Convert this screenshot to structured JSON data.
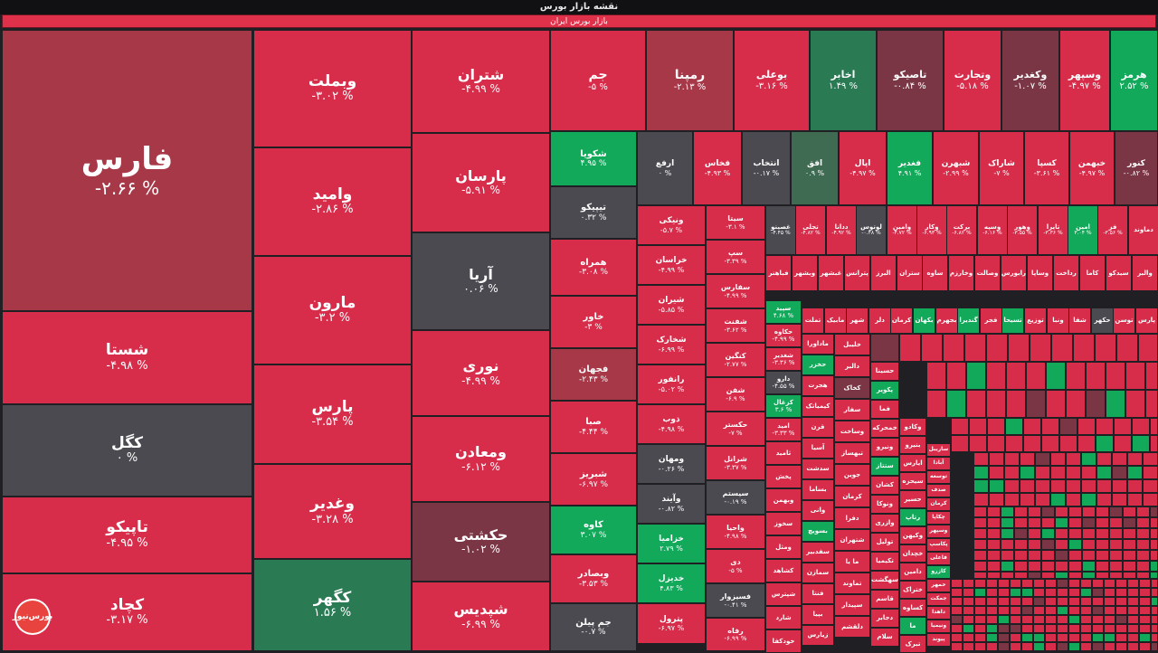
{
  "header": {
    "title": "نقشه بازار بورس",
    "market": "بازار بورس ایران"
  },
  "logo_text": "بورس‌نیوز",
  "colors": {
    "negative": "#d72c4a",
    "neutral": "#4a4a50",
    "positive": "#13a95b"
  },
  "big": [
    {
      "name": "فارس",
      "pct": "-۲.۶۶ %",
      "c": "dr"
    },
    {
      "name": "شستا",
      "pct": "-۴.۹۸ %",
      "c": "r"
    },
    {
      "name": "کگل",
      "pct": "۰ %",
      "c": "gy"
    },
    {
      "name": "تاپیکو",
      "pct": "-۴.۹۵ %",
      "c": "r"
    },
    {
      "name": "کچاد",
      "pct": "-۳.۱۷ %",
      "c": "r"
    },
    {
      "name": "وبملت",
      "pct": "-۳.۰۲ %",
      "c": "r"
    },
    {
      "name": "وامید",
      "pct": "-۲.۸۶ %",
      "c": "r"
    },
    {
      "name": "مارون",
      "pct": "-۳.۲ %",
      "c": "r"
    },
    {
      "name": "پارس",
      "pct": "-۳.۵۴ %",
      "c": "r"
    },
    {
      "name": "وغدیر",
      "pct": "-۳.۲۸ %",
      "c": "r"
    },
    {
      "name": "کگهر",
      "pct": "۱.۵۶ %",
      "c": "dg"
    },
    {
      "name": "شتران",
      "pct": "-۴.۹۹ %",
      "c": "r"
    },
    {
      "name": "پارسان",
      "pct": "-۵.۹۱ %",
      "c": "r"
    },
    {
      "name": "آریا",
      "pct": "۰.۰۶ %",
      "c": "gy"
    },
    {
      "name": "نوری",
      "pct": "-۴.۹۹ %",
      "c": "r"
    },
    {
      "name": "ومعادن",
      "pct": "-۶.۱۲ %",
      "c": "r"
    },
    {
      "name": "حکشتی",
      "pct": "-۱.۰۲ %",
      "c": "mr"
    },
    {
      "name": "شپدیس",
      "pct": "-۶.۹۹ %",
      "c": "r"
    }
  ],
  "top_row": [
    {
      "name": "جم",
      "pct": "-۵ %",
      "c": "r"
    },
    {
      "name": "رمپنا",
      "pct": "-۲.۱۳ %",
      "c": "dr"
    },
    {
      "name": "بوعلی",
      "pct": "-۳.۱۶ %",
      "c": "r"
    },
    {
      "name": "اخابر",
      "pct": "۱.۴۹ %",
      "c": "dg"
    },
    {
      "name": "تاصیکو",
      "pct": "-۰.۸۴ %",
      "c": "mr"
    },
    {
      "name": "وتجارت",
      "pct": "-۵.۱۸ %",
      "c": "r"
    },
    {
      "name": "وکغدیر",
      "pct": "-۱.۰۷ %",
      "c": "mr"
    },
    {
      "name": "وسپهر",
      "pct": "-۴.۹۷ %",
      "c": "r"
    },
    {
      "name": "هرمز",
      "pct": "۲.۵۲ %",
      "c": "g"
    }
  ],
  "col_a": [
    {
      "name": "شکویا",
      "pct": "۴.۹۵ %",
      "c": "g"
    },
    {
      "name": "تیپیکو",
      "pct": "۰.۳۲ %",
      "c": "gy"
    },
    {
      "name": "همراه",
      "pct": "-۳.۰۸ %",
      "c": "r"
    },
    {
      "name": "خاور",
      "pct": "-۳ %",
      "c": "r"
    },
    {
      "name": "فجهان",
      "pct": "-۲.۴۳ %",
      "c": "dr"
    },
    {
      "name": "صبا",
      "pct": "-۴.۴۴ %",
      "c": "r"
    },
    {
      "name": "شبریز",
      "pct": "-۶.۹۷ %",
      "c": "r"
    },
    {
      "name": "کاوه",
      "pct": "۳.۰۷ %",
      "c": "g"
    },
    {
      "name": "وبصادر",
      "pct": "-۳.۵۳ %",
      "c": "r"
    },
    {
      "name": "جم پیلن",
      "pct": "-۰.۷ %",
      "c": "gy"
    }
  ],
  "row2": [
    {
      "name": "ارفع",
      "pct": "۰ %",
      "c": "gy"
    },
    {
      "name": "فخاس",
      "pct": "-۴.۹۳ %",
      "c": "r"
    },
    {
      "name": "انتخاب",
      "pct": "-۰.۱۷ %",
      "c": "gy"
    },
    {
      "name": "افق",
      "pct": "۰.۹ %",
      "c": "mg"
    },
    {
      "name": "اپال",
      "pct": "-۴.۹۷ %",
      "c": "r"
    },
    {
      "name": "فغدیر",
      "pct": "۴.۹۱ %",
      "c": "g"
    },
    {
      "name": "شبهرن",
      "pct": "-۲.۹۹ %",
      "c": "r"
    },
    {
      "name": "شاراک",
      "pct": "-۷ %",
      "c": "r"
    },
    {
      "name": "کسپا",
      "pct": "-۳.۶۱ %",
      "c": "r"
    },
    {
      "name": "خبهمن",
      "pct": "-۴.۹۷ %",
      "c": "r"
    },
    {
      "name": "کنور",
      "pct": "-۰.۸۲ %",
      "c": "mr"
    }
  ],
  "col_b": [
    {
      "name": "ونیکی",
      "pct": "-۵.۷ %"
    },
    {
      "name": "خراسان",
      "pct": "-۴.۹۹ %"
    },
    {
      "name": "شیران",
      "pct": "-۵.۸۵ %"
    },
    {
      "name": "شخارک",
      "pct": "-۶.۹۹ %"
    },
    {
      "name": "رانفور",
      "pct": "-۵.۰۲ %"
    },
    {
      "name": "ذوب",
      "pct": "-۴.۹۸ %"
    },
    {
      "name": "ومهان",
      "pct": "-۰.۲۶ %"
    },
    {
      "name": "وآیند",
      "pct": "-۰.۸۲ %"
    },
    {
      "name": "خزامیا",
      "pct": "۲.۷۹ %"
    },
    {
      "name": "خدیزل",
      "pct": "۴.۸۳ %"
    },
    {
      "name": "پترول",
      "pct": "-۶.۹۷ %"
    }
  ],
  "col_c": [
    {
      "name": "سیتا",
      "pct": "-۳.۱ %"
    },
    {
      "name": "سپ",
      "pct": "-۳.۳۹ %"
    },
    {
      "name": "سفارس",
      "pct": "-۴.۹۹ %"
    },
    {
      "name": "شفنت",
      "pct": "-۳.۶۲ %"
    },
    {
      "name": "کنگین",
      "pct": "-۲.۷۷ %"
    },
    {
      "name": "شفن",
      "pct": "-۶.۹ %"
    },
    {
      "name": "حکستر",
      "pct": "-۷ %"
    },
    {
      "name": "شرانل",
      "pct": "-۳.۳۷ %"
    },
    {
      "name": "سیستم",
      "pct": "-۰.۱۹ %"
    },
    {
      "name": "واحیا",
      "pct": "-۴.۹۸ %"
    },
    {
      "name": "دی",
      "pct": "-۵ %"
    },
    {
      "name": "فسیزوار",
      "pct": "-۰.۴۱ %"
    },
    {
      "name": "رفاه",
      "pct": "-۶.۹۹ %"
    }
  ],
  "col_d": [
    {
      "name": "سپید",
      "pct": "۴.۶۸ %"
    },
    {
      "name": "حکاوه",
      "pct": "-۴.۹۹ %"
    },
    {
      "name": "شغدیر",
      "pct": "-۳.۳۶ %"
    },
    {
      "name": "دارو",
      "pct": "-۴.۵۵ %"
    },
    {
      "name": "کزغال",
      "pct": "۳.۶ %"
    },
    {
      "name": "امید",
      "pct": "-۳.۳۳ %"
    },
    {
      "name": "ثامید",
      "pct": ""
    },
    {
      "name": "پخش",
      "pct": ""
    },
    {
      "name": "وبهمن",
      "pct": ""
    },
    {
      "name": "سخوز",
      "pct": ""
    },
    {
      "name": "ومثل",
      "pct": ""
    },
    {
      "name": "کشاهد",
      "pct": ""
    },
    {
      "name": "شپترس",
      "pct": ""
    },
    {
      "name": "شارد",
      "pct": ""
    },
    {
      "name": "خودکفا",
      "pct": ""
    }
  ],
  "row3": [
    {
      "name": "غصینو",
      "pct": "-۴.۴۵ %"
    },
    {
      "name": "تجلی",
      "pct": "-۴.۸۲ %"
    },
    {
      "name": "ددانا",
      "pct": "-۴.۹۲ %"
    },
    {
      "name": "لوتوس",
      "pct": "-۰.۴۸ %"
    },
    {
      "name": "وامین",
      "pct": "-۴.۷۲ %"
    },
    {
      "name": "وکار",
      "pct": "-۶.۹۳ %"
    },
    {
      "name": "برکت",
      "pct": "-۶.۸۲ %"
    },
    {
      "name": "وسپه",
      "pct": "-۶.۱۶ %"
    },
    {
      "name": "وهور",
      "pct": "-۳.۵۵ %"
    },
    {
      "name": "تایرا",
      "pct": "-۳.۳۶ %"
    },
    {
      "name": "امین",
      "pct": "۳.۰۴ %"
    },
    {
      "name": "فز",
      "pct": "-۳.۵۶ %"
    },
    {
      "name": "دماوند",
      "pct": ""
    }
  ],
  "row4": [
    "فباهنر",
    "وبشهر",
    "غبشهر",
    "پترانس",
    "البرز",
    "ستران",
    "ساوه",
    "وخارزم",
    "وصالت",
    "رابورس",
    "وساپا",
    "رداخت",
    "کاما",
    "سیدکو",
    "والبر"
  ],
  "row5": [
    "تملت",
    "مابیک",
    "شهر",
    "دلر",
    "کرمان",
    "بکهان",
    "بجهرم",
    "گندیرا",
    "فجر",
    "تسیحا",
    "توزیع",
    "ونبا",
    "شفا",
    "حکهر",
    "توسن",
    "پارس"
  ],
  "col_e": [
    "ماداورا",
    "حخزر",
    "هجرت",
    "کیمیاتک",
    "قرن",
    "آسیا",
    "سدشت",
    "بساما",
    "وانی",
    "بسویچ",
    "سفدبیر",
    "سمازن",
    "فنتا",
    "بپیا",
    "زیارس"
  ],
  "col_f": [
    "خلیبل",
    "دالبر",
    "کخاک",
    "سفار",
    "وساخت",
    "تبهساز",
    "جوین",
    "کرمان",
    "دفرا",
    "شتهران",
    "ما یا",
    "تماوند",
    "سپیدار",
    "دلقشم"
  ],
  "col_g": [
    "حسینا",
    "پکویر",
    "فما",
    "خمحرکه",
    "ونیرو",
    "ستتاز",
    "کشان",
    "ونوکا",
    "وازری",
    "تولیل",
    "تکیمیا",
    "سهگشت",
    "قاسم",
    "دجابر",
    "سلام"
  ],
  "col_h": [
    "وکادو",
    "بنیرو",
    "ایارس",
    "سیحزه",
    "حسیر",
    "رتاپ",
    "وکیهن",
    "خچدان",
    "دامین",
    "ختراک",
    "کساوه",
    "ما",
    "تبرک"
  ],
  "col_i": [
    "ساریبل",
    "آبادا",
    "توسعه",
    "صدف",
    "کرمان",
    "چکاپا",
    "وسپهر",
    "پکاسپ",
    "فاعلی",
    "کازرو",
    "خمهر",
    "جمکت",
    "داهدا",
    "ونیمیا",
    "پیوند"
  ]
}
